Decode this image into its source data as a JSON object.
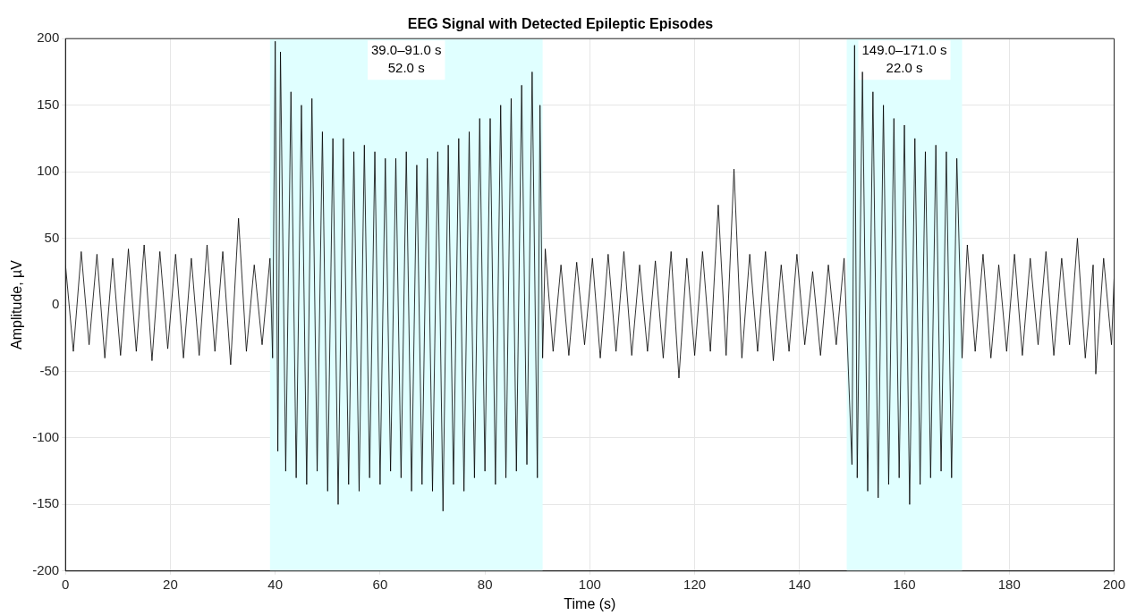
{
  "chart_data": {
    "type": "line",
    "title": "EEG Signal with Detected Epileptic Episodes",
    "xlabel": "Time (s)",
    "ylabel": "Amplitude, µV",
    "x": [
      0,
      1.5,
      3,
      4.5,
      6,
      7.5,
      9,
      10.5,
      12,
      13.5,
      15,
      16.5,
      18,
      19.5,
      21,
      22.5,
      24,
      25.5,
      27,
      28.5,
      30,
      31.5,
      33,
      34.5,
      36,
      37.5,
      39,
      39.5,
      40,
      40.5,
      41,
      42,
      43,
      44,
      45,
      46,
      47,
      48,
      49,
      50,
      51,
      52,
      53,
      54,
      55,
      56,
      57,
      58,
      59,
      60,
      61,
      62,
      63,
      64,
      65,
      66,
      67,
      68,
      69,
      70,
      71,
      72,
      73,
      74,
      75,
      76,
      77,
      78,
      79,
      80,
      81,
      82,
      83,
      84,
      85,
      86,
      87,
      88,
      89,
      90,
      90.5,
      91,
      91.5,
      93,
      94.5,
      96,
      97.5,
      99,
      100.5,
      102,
      103.5,
      105,
      106.5,
      108,
      109.5,
      111,
      112.5,
      114,
      115.5,
      117,
      118.5,
      120,
      121.5,
      123,
      124.5,
      126,
      127.5,
      129,
      130.5,
      132,
      133.5,
      135,
      136.5,
      138,
      139.5,
      141,
      142.5,
      144,
      145.5,
      147,
      148.5,
      150,
      150.5,
      151,
      152,
      153,
      154,
      155,
      156,
      157,
      158,
      159,
      160,
      161,
      162,
      163,
      164,
      165,
      166,
      167,
      168,
      169,
      170,
      171,
      172,
      173.5,
      175,
      176.5,
      178,
      179.5,
      181,
      182.5,
      184,
      185.5,
      187,
      188.5,
      190,
      191.5,
      193,
      194.5,
      196,
      196.5,
      198,
      199.5,
      200
    ],
    "values": [
      30,
      -35,
      40,
      -30,
      38,
      -40,
      35,
      -38,
      42,
      -35,
      45,
      -42,
      40,
      -33,
      38,
      -40,
      35,
      -38,
      45,
      -35,
      40,
      -45,
      65,
      -35,
      30,
      -30,
      35,
      -40,
      198,
      -110,
      190,
      -125,
      160,
      -130,
      150,
      -135,
      155,
      -125,
      130,
      -140,
      125,
      -150,
      125,
      -135,
      115,
      -140,
      120,
      -130,
      115,
      -135,
      110,
      -125,
      110,
      -130,
      115,
      -140,
      105,
      -135,
      110,
      -140,
      115,
      -155,
      120,
      -135,
      125,
      -140,
      130,
      -130,
      140,
      -125,
      140,
      -135,
      150,
      -130,
      155,
      -125,
      165,
      -120,
      175,
      -130,
      150,
      -40,
      42,
      -35,
      30,
      -38,
      32,
      -30,
      35,
      -40,
      38,
      -35,
      40,
      -38,
      30,
      -35,
      33,
      -40,
      40,
      -55,
      35,
      -38,
      40,
      -35,
      75,
      -38,
      102,
      -40,
      38,
      -35,
      40,
      -42,
      30,
      -35,
      38,
      -30,
      25,
      -38,
      30,
      -30,
      35,
      -120,
      195,
      -130,
      175,
      -140,
      160,
      -145,
      150,
      -135,
      140,
      -130,
      135,
      -150,
      125,
      -135,
      115,
      -130,
      120,
      -125,
      115,
      -130,
      110,
      -40,
      45,
      -35,
      38,
      -40,
      30,
      -35,
      38,
      -38,
      35,
      -30,
      40,
      -38,
      35,
      -30,
      50,
      -40,
      30,
      -52,
      35,
      -30,
      20
    ],
    "color": "#000000",
    "xlim": [
      0,
      200
    ],
    "xticks": [
      0,
      20,
      40,
      60,
      80,
      100,
      120,
      140,
      160,
      180,
      200
    ],
    "ylim": [
      -200,
      200
    ],
    "yticks": [
      -200,
      -150,
      -100,
      -50,
      0,
      50,
      100,
      150,
      200
    ],
    "bands": [
      {
        "axis": "x",
        "from": 39,
        "to": 91,
        "label": "39.0–91.0 s\n52.0 s",
        "color": "#e0ffff"
      },
      {
        "axis": "x",
        "from": 149,
        "to": 171,
        "label": "149.0–171.0 s\n22.0 s",
        "color": "#e0ffff"
      }
    ],
    "grid": true,
    "legend": false,
    "marker": "none",
    "line_style": "solid"
  }
}
